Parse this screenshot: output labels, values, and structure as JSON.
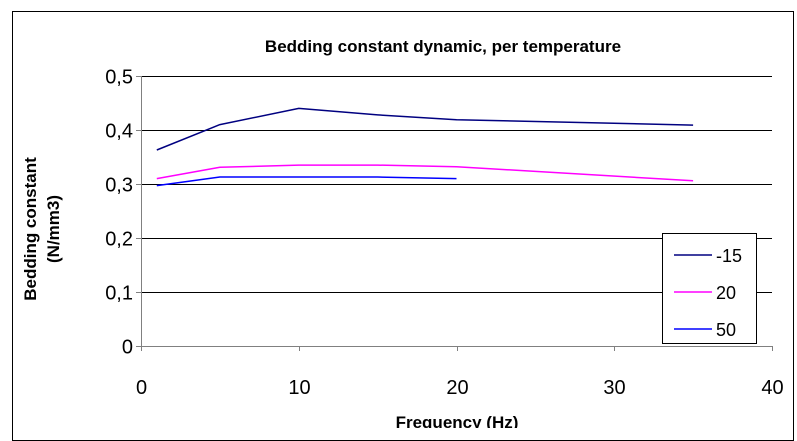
{
  "chart_data": {
    "type": "line",
    "title": "Bedding constant dynamic, per temperature",
    "xlabel": "Frequency (Hz)",
    "ylabel_line1": "Bedding constant",
    "ylabel_line2": "(N/mm3)",
    "xlim": [
      0,
      40
    ],
    "ylim": [
      0,
      0.5
    ],
    "x_ticks": [
      0,
      10,
      20,
      30,
      40
    ],
    "y_ticks": [
      0,
      0.1,
      0.2,
      0.3,
      0.4,
      0.5
    ],
    "y_tick_labels": [
      "0",
      "0,1",
      "0,2",
      "0,3",
      "0,4",
      "0,5"
    ],
    "grid": "horizontal",
    "legend_position": "bottom-right",
    "series": [
      {
        "name": "-15",
        "color": "#000080",
        "x": [
          1,
          5,
          10,
          15,
          20,
          35
        ],
        "y": [
          0.363,
          0.41,
          0.44,
          0.428,
          0.419,
          0.409
        ]
      },
      {
        "name": "20",
        "color": "#ff00ff",
        "x": [
          1,
          5,
          10,
          15,
          20,
          35
        ],
        "y": [
          0.31,
          0.331,
          0.335,
          0.335,
          0.332,
          0.306
        ]
      },
      {
        "name": "50",
        "color": "#0000ff",
        "x": [
          1,
          5,
          10,
          15,
          20
        ],
        "y": [
          0.297,
          0.313,
          0.313,
          0.313,
          0.31
        ]
      }
    ]
  }
}
